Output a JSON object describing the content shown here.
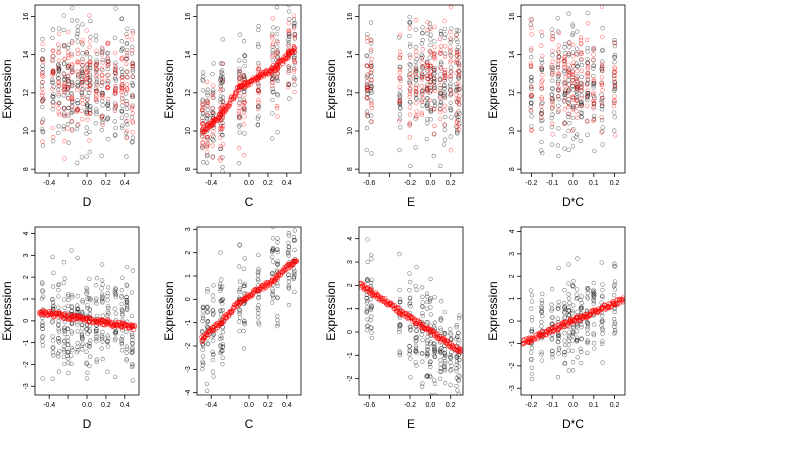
{
  "chart_data": [
    {
      "type": "scatter",
      "row": 1,
      "xlabel": "D",
      "ylabel": "Expression",
      "xlim": [
        -0.55,
        0.55
      ],
      "ylim": [
        7.8,
        16.6
      ],
      "xticks": [
        -0.4,
        -0.2,
        0.0,
        0.2,
        0.4
      ],
      "xtick_labels": [
        "-0.4",
        "",
        "0.0",
        "0.2",
        "0.4"
      ],
      "yticks": [
        8,
        10,
        12,
        14,
        16
      ],
      "ytick_labels": [
        "8",
        "10",
        "12",
        "14",
        "16"
      ],
      "x_levels": [
        -0.47,
        -0.36,
        -0.3,
        -0.24,
        -0.2,
        -0.16,
        -0.1,
        -0.05,
        0.0,
        0.03,
        0.1,
        0.16,
        0.22,
        0.3,
        0.37,
        0.42,
        0.48
      ],
      "series": [
        {
          "color": "#000000",
          "center": 12.5,
          "spread": 1.6
        },
        {
          "color": "#ff0000",
          "center": 12.6,
          "spread": 1.3
        }
      ],
      "fit": null
    },
    {
      "type": "scatter",
      "row": 1,
      "xlabel": "C",
      "ylabel": "Expression",
      "xlim": [
        -0.55,
        0.55
      ],
      "ylim": [
        7.8,
        16.6
      ],
      "xticks": [
        -0.4,
        -0.2,
        0.0,
        0.2,
        0.4
      ],
      "xtick_labels": [
        "-0.4",
        "",
        "0.0",
        "0.2",
        "0.4"
      ],
      "yticks": [
        8,
        10,
        12,
        14,
        16
      ],
      "ytick_labels": [
        "8",
        "10",
        "12",
        "14",
        "16"
      ],
      "x_levels": [
        -0.49,
        -0.44,
        -0.38,
        -0.3,
        -0.28,
        -0.1,
        -0.05,
        0.1,
        0.25,
        0.3,
        0.42,
        0.48
      ],
      "series": [
        {
          "color": "#000000",
          "center": 12.3,
          "spread": 1.5,
          "slope": 4.0
        },
        {
          "color": "#ff0000",
          "center": 12.0,
          "spread": 1.0,
          "slope": 4.0
        }
      ],
      "fit": {
        "x": [
          -0.49,
          -0.3,
          -0.1,
          0.1,
          0.3,
          0.48
        ],
        "y": [
          10.0,
          10.8,
          12.3,
          12.8,
          13.4,
          14.3
        ]
      }
    },
    {
      "type": "scatter",
      "row": 1,
      "xlabel": "E",
      "ylabel": "Expression",
      "xlim": [
        -0.7,
        0.32
      ],
      "ylim": [
        7.8,
        16.6
      ],
      "xticks": [
        -0.6,
        -0.4,
        -0.2,
        0.0,
        0.2
      ],
      "xtick_labels": [
        "-0.6",
        "",
        "-0.2",
        "0.0",
        "0.2"
      ],
      "yticks": [
        8,
        10,
        12,
        14,
        16
      ],
      "ytick_labels": [
        "8",
        "10",
        "12",
        "14",
        "16"
      ],
      "x_levels": [
        -0.62,
        -0.58,
        -0.3,
        -0.2,
        -0.14,
        -0.08,
        -0.03,
        0.0,
        0.04,
        0.1,
        0.14,
        0.2,
        0.26,
        0.28
      ],
      "series": [
        {
          "color": "#000000",
          "center": 12.6,
          "spread": 1.6
        },
        {
          "color": "#ff0000",
          "center": 12.8,
          "spread": 1.3
        }
      ],
      "fit": null
    },
    {
      "type": "scatter",
      "row": 1,
      "xlabel": "D*C",
      "ylabel": "Expression",
      "xlim": [
        -0.25,
        0.25
      ],
      "ylim": [
        7.8,
        16.6
      ],
      "xticks": [
        -0.2,
        -0.1,
        0.0,
        0.1,
        0.2
      ],
      "xtick_labels": [
        "-0.2",
        "-0.1",
        "0.0",
        "0.1",
        "0.2"
      ],
      "yticks": [
        8,
        10,
        12,
        14,
        16
      ],
      "ytick_labels": [
        "8",
        "10",
        "12",
        "14",
        "16"
      ],
      "x_levels": [
        -0.2,
        -0.15,
        -0.1,
        -0.07,
        -0.04,
        -0.02,
        0.0,
        0.02,
        0.04,
        0.07,
        0.1,
        0.14,
        0.2
      ],
      "series": [
        {
          "color": "#000000",
          "center": 12.4,
          "spread": 1.6
        },
        {
          "color": "#ff0000",
          "center": 12.6,
          "spread": 1.4
        }
      ],
      "fit": null
    },
    {
      "type": "scatter",
      "row": 2,
      "xlabel": "D",
      "ylabel": "Expression",
      "xlim": [
        -0.55,
        0.55
      ],
      "ylim": [
        -3.4,
        4.3
      ],
      "xticks": [
        -0.4,
        -0.2,
        0.0,
        0.2,
        0.4
      ],
      "xtick_labels": [
        "-0.4",
        "",
        "0.0",
        "0.2",
        "0.4"
      ],
      "yticks": [
        -3,
        -2,
        -1,
        0,
        1,
        2,
        3,
        4
      ],
      "ytick_labels": [
        "-3",
        "-2",
        "-1",
        "0",
        "1",
        "2",
        "3",
        "4"
      ],
      "x_levels": [
        -0.47,
        -0.36,
        -0.3,
        -0.24,
        -0.2,
        -0.16,
        -0.1,
        -0.05,
        0.0,
        0.03,
        0.1,
        0.16,
        0.22,
        0.3,
        0.37,
        0.42,
        0.48
      ],
      "series": [
        {
          "color": "#000000",
          "center": 0.0,
          "spread": 1.1
        }
      ],
      "fit": {
        "x": [
          -0.5,
          0.5
        ],
        "y": [
          0.4,
          -0.3
        ]
      }
    },
    {
      "type": "scatter",
      "row": 2,
      "xlabel": "C",
      "ylabel": "Expression",
      "xlim": [
        -0.55,
        0.55
      ],
      "ylim": [
        -4.1,
        3.1
      ],
      "xticks": [
        -0.4,
        -0.2,
        0.0,
        0.2,
        0.4
      ],
      "xtick_labels": [
        "-0.4",
        "",
        "0.0",
        "0.2",
        "0.4"
      ],
      "yticks": [
        -4,
        -3,
        -2,
        -1,
        0,
        1,
        2,
        3
      ],
      "ytick_labels": [
        "-4",
        "-3",
        "-2",
        "-1",
        "0",
        "1",
        "2",
        "3"
      ],
      "x_levels": [
        -0.49,
        -0.44,
        -0.38,
        -0.3,
        -0.28,
        -0.1,
        -0.05,
        0.1,
        0.25,
        0.3,
        0.42,
        0.48
      ],
      "series": [
        {
          "color": "#000000",
          "center": 0.0,
          "spread": 1.0,
          "slope": 3.4
        }
      ],
      "fit": {
        "x": [
          -0.5,
          -0.3,
          -0.1,
          0.1,
          0.25,
          0.5
        ],
        "y": [
          -1.7,
          -1.0,
          -0.1,
          0.4,
          0.8,
          1.7
        ]
      }
    },
    {
      "type": "scatter",
      "row": 2,
      "xlabel": "E",
      "ylabel": "Expression",
      "xlim": [
        -0.7,
        0.32
      ],
      "ylim": [
        -2.7,
        4.5
      ],
      "xticks": [
        -0.6,
        -0.4,
        -0.2,
        0.0,
        0.2
      ],
      "xtick_labels": [
        "-0.6",
        "",
        "-0.2",
        "0.0",
        "0.2"
      ],
      "yticks": [
        -2,
        -1,
        0,
        1,
        2,
        3,
        4
      ],
      "ytick_labels": [
        "-2",
        "-1",
        "0",
        "1",
        "2",
        "3",
        "4"
      ],
      "x_levels": [
        -0.62,
        -0.58,
        -0.3,
        -0.2,
        -0.14,
        -0.08,
        -0.03,
        0.0,
        0.04,
        0.1,
        0.14,
        0.2,
        0.26,
        0.28
      ],
      "series": [
        {
          "color": "#000000",
          "center": 0.0,
          "spread": 1.1,
          "slope": -2.9
        }
      ],
      "fit": {
        "x": [
          -0.68,
          0.3
        ],
        "y": [
          2.0,
          -0.85
        ]
      }
    },
    {
      "type": "scatter",
      "row": 2,
      "xlabel": "D*C",
      "ylabel": "Expression",
      "xlim": [
        -0.25,
        0.25
      ],
      "ylim": [
        -3.3,
        4.2
      ],
      "xticks": [
        -0.2,
        -0.1,
        0.0,
        0.1,
        0.2
      ],
      "xtick_labels": [
        "-0.2",
        "-0.1",
        "0.0",
        "0.1",
        "0.2"
      ],
      "yticks": [
        -3,
        -2,
        -1,
        0,
        1,
        2,
        3,
        4
      ],
      "ytick_labels": [
        "-3",
        "-2",
        "-1",
        "0",
        "1",
        "2",
        "3",
        "4"
      ],
      "x_levels": [
        -0.2,
        -0.15,
        -0.1,
        -0.07,
        -0.04,
        -0.02,
        0.0,
        0.02,
        0.04,
        0.07,
        0.1,
        0.14,
        0.2
      ],
      "series": [
        {
          "color": "#000000",
          "center": 0.0,
          "spread": 1.0,
          "slope": 4.0
        }
      ],
      "fit": {
        "x": [
          -0.24,
          0.24
        ],
        "y": [
          -0.95,
          0.95
        ]
      }
    }
  ]
}
